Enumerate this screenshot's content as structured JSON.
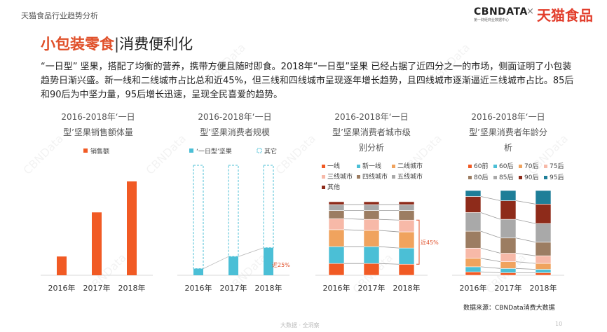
{
  "header": {
    "report_title": "天猫食品行业趋势分析",
    "logo_cbn": "CBNDATA",
    "logo_cbn_sub": "第一财经商业数据中心",
    "logo_x": "×",
    "logo_tmall": "天猫食品"
  },
  "heading": {
    "part_a": "小包装零食",
    "separator": "|",
    "part_b": "消费便利化"
  },
  "body_text": "“一日型” 坚果，搭配了均衡的营养，携带方便且随时即食。2018年“一日型”坚果 已经占据了近四分之一的市场，侧面证明了小包装趋势日渐兴盛。新一线和二线城市占比总和近45%，但三线和四线城市呈现逐年增长趋势，且四线城市逐渐逼近三线城市占比。85后和90后为中坚力量，95后增长迅速，呈现全民喜爱的趋势。",
  "source": "数据来源：CBNData消费大数据",
  "footer_brand": "大数据 · 全洞察",
  "page_number": "10",
  "watermark": "CBNData",
  "colors": {
    "accent": "#f15a24",
    "teal": "#4bbfd6"
  },
  "chart_data": [
    {
      "type": "bar",
      "title_lines": [
        "2016-2018年‘一日",
        "型’坚果销售额体量"
      ],
      "categories": [
        "2016年",
        "2017年",
        "2018年"
      ],
      "series": [
        {
          "name": "销售额",
          "color": "#f15a24",
          "values": [
            20,
            67,
            100
          ]
        }
      ],
      "ylim": [
        0,
        110
      ]
    },
    {
      "type": "bar",
      "stacked": true,
      "title_lines": [
        "2016-2018年‘一日",
        "型’坚果消费者规模"
      ],
      "categories": [
        "2016年",
        "2017年",
        "2018年"
      ],
      "series": [
        {
          "name": "‘一日型’坚果",
          "color": "#4bbfd6",
          "values": [
            6,
            17,
            25
          ]
        },
        {
          "name": "其它",
          "color": "#4bbfd6",
          "style": "dashed",
          "values": [
            94,
            83,
            75
          ]
        }
      ],
      "annotation": "近25%",
      "ylim": [
        0,
        100
      ]
    },
    {
      "type": "bar",
      "stacked": true,
      "percent": true,
      "title_lines": [
        "2016-2018年‘一日",
        "型’坚果消费者城市级",
        "别分析"
      ],
      "categories": [
        "2016年",
        "2017年",
        "2018年"
      ],
      "series": [
        {
          "name": "一线",
          "color": "#f15a24",
          "values": [
            16,
            16,
            15
          ]
        },
        {
          "name": "新一线",
          "color": "#4bbfd6",
          "values": [
            23,
            23,
            22
          ]
        },
        {
          "name": "二线城市",
          "color": "#f0a35e",
          "values": [
            23,
            22,
            22
          ]
        },
        {
          "name": "三线城市",
          "color": "#f7b9a8",
          "values": [
            15,
            15,
            16
          ]
        },
        {
          "name": "四线城市",
          "color": "#9c7d62",
          "values": [
            11,
            12,
            13
          ]
        },
        {
          "name": "五线城市",
          "color": "#a9a9a9",
          "values": [
            8,
            8,
            8
          ]
        },
        {
          "name": "其他",
          "color": "#8e2b1a",
          "values": [
            4,
            4,
            4
          ]
        }
      ],
      "annotation": "近45%"
    },
    {
      "type": "bar",
      "stacked": true,
      "percent": true,
      "title_lines": [
        "2016-2018年‘一日",
        "型’坚果消费者年龄分",
        "析"
      ],
      "categories": [
        "2016年",
        "2017年",
        "2018年"
      ],
      "series": [
        {
          "name": "60前",
          "color": "#f15a24",
          "values": [
            4,
            3,
            3
          ]
        },
        {
          "name": "60后",
          "color": "#4bbfd6",
          "values": [
            6,
            5,
            4
          ]
        },
        {
          "name": "70后",
          "color": "#f0a35e",
          "values": [
            10,
            8,
            7
          ]
        },
        {
          "name": "75后",
          "color": "#f7b9a8",
          "values": [
            12,
            10,
            9
          ]
        },
        {
          "name": "80后",
          "color": "#9c7d62",
          "values": [
            20,
            18,
            16
          ]
        },
        {
          "name": "85后",
          "color": "#a9a9a9",
          "values": [
            22,
            22,
            22
          ]
        },
        {
          "name": "90后",
          "color": "#8e2b1a",
          "values": [
            19,
            22,
            23
          ]
        },
        {
          "name": "95后",
          "color": "#1e7e98",
          "values": [
            7,
            12,
            16
          ]
        }
      ]
    }
  ]
}
